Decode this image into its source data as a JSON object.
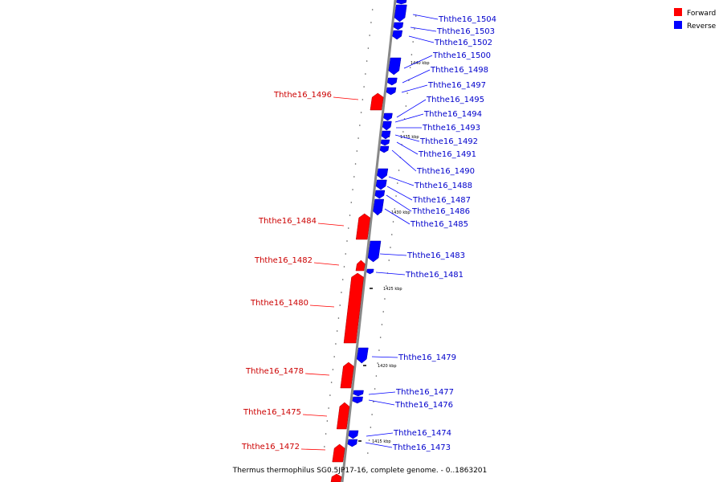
{
  "caption": "Thermus thermophilus SG0.5JP17-16, complete genome. - 0..1863201",
  "legend": [
    {
      "label": "Forward",
      "color": "#ff0000"
    },
    {
      "label": "Reverse",
      "color": "#0000ff"
    }
  ],
  "colors": {
    "forward": "#ff0000",
    "reverse": "#0000ff",
    "backbone": "#888888"
  },
  "ticks": [
    "1440 kbp",
    "1435 kbp",
    "1430 kbp",
    "1425 kbp",
    "1420 kbp",
    "1415 kbp"
  ],
  "genes_forward": [
    "Ththe16_1496",
    "Ththe16_1484",
    "Ththe16_1482",
    "Ththe16_1480",
    "Ththe16_1478",
    "Ththe16_1475",
    "Ththe16_1472"
  ],
  "genes_reverse": [
    "Ththe16_1504",
    "Ththe16_1503",
    "Ththe16_1502",
    "Ththe16_1500",
    "Ththe16_1498",
    "Ththe16_1497",
    "Ththe16_1495",
    "Ththe16_1494",
    "Ththe16_1493",
    "Ththe16_1492",
    "Ththe16_1491",
    "Ththe16_1490",
    "Ththe16_1488",
    "Ththe16_1487",
    "Ththe16_1486",
    "Ththe16_1485",
    "Ththe16_1483",
    "Ththe16_1481",
    "Ththe16_1479",
    "Ththe16_1477",
    "Ththe16_1476",
    "Ththe16_1474",
    "Ththe16_1473"
  ]
}
